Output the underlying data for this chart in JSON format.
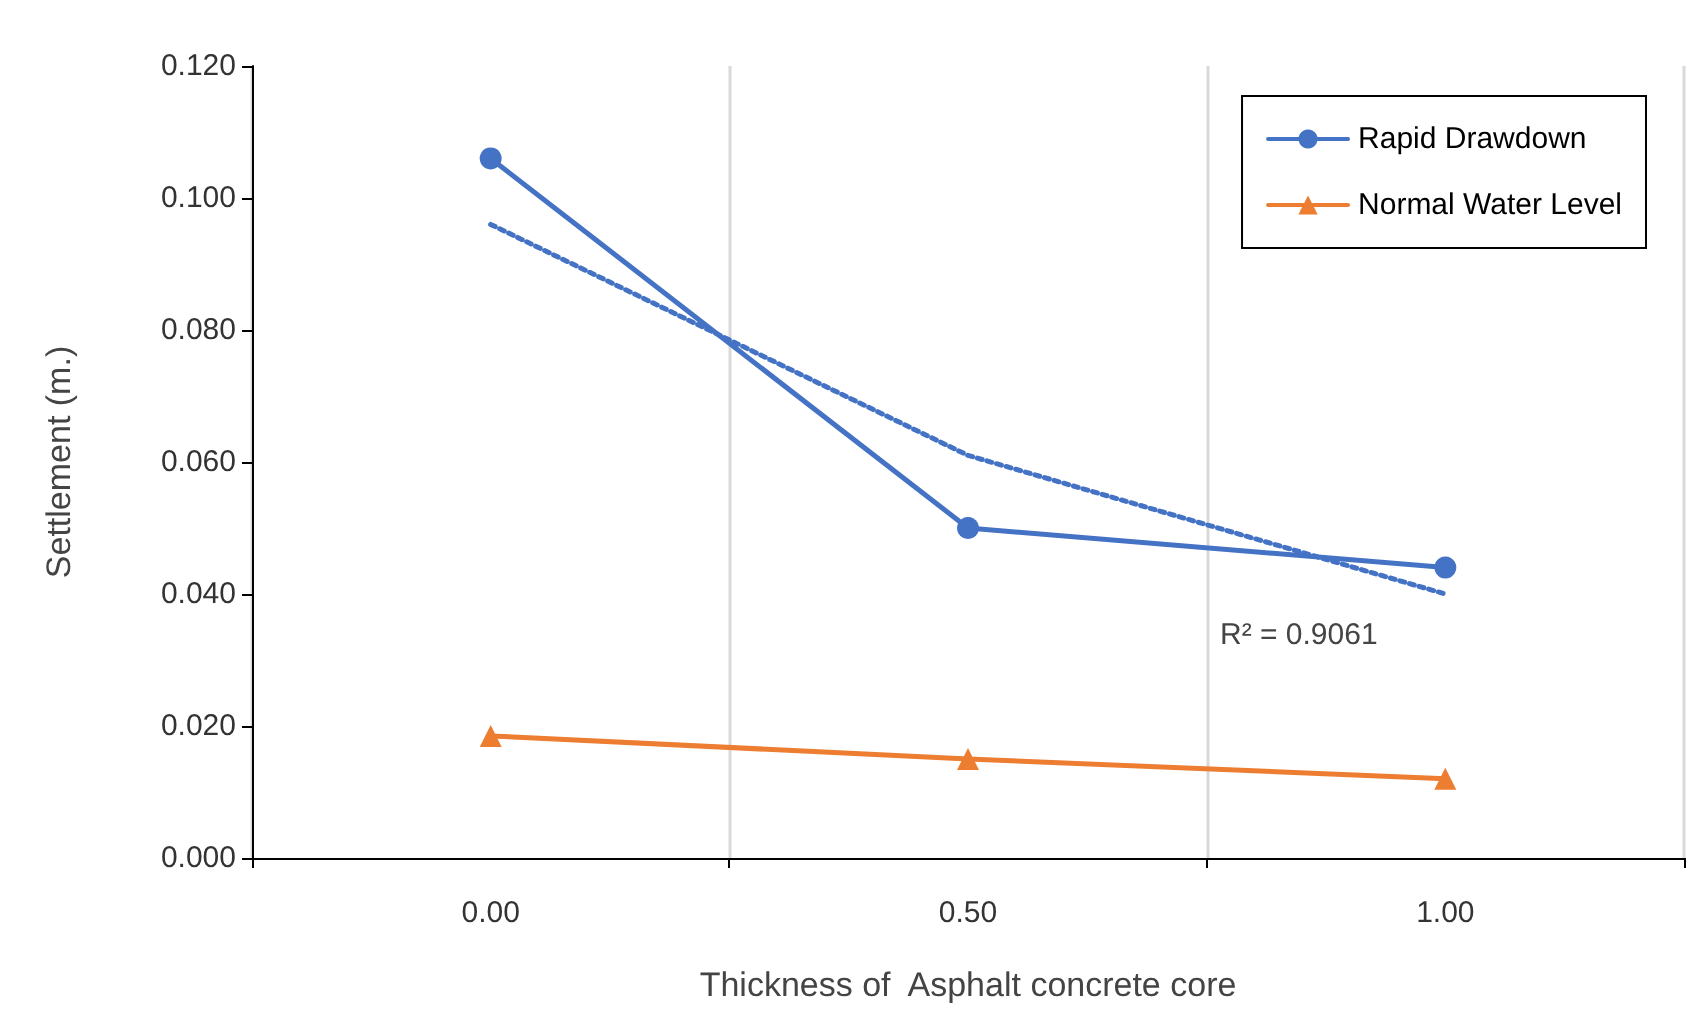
{
  "chart_data": {
    "type": "line",
    "xlabel": "Thickness of  Asphalt concrete core",
    "ylabel": "Settlement (m.)",
    "categories": [
      "0.00",
      "0.50",
      "1.00"
    ],
    "series": [
      {
        "name": "Rapid Drawdown",
        "color": "#4472c4",
        "values": [
          0.106,
          0.05,
          0.044
        ],
        "marker": "circle",
        "line_style": "solid"
      },
      {
        "name": "Normal Water Level",
        "color": "#ed7d31",
        "values": [
          0.0185,
          0.015,
          0.012
        ],
        "marker": "triangle",
        "line_style": "solid"
      },
      {
        "color": "#4472c4",
        "values": [
          0.096,
          0.061,
          0.04
        ],
        "marker": "none",
        "line_style": "dotted"
      }
    ],
    "ylim": [
      0,
      0.12
    ],
    "yticks": [
      {
        "value": 0,
        "label": "0.000"
      },
      {
        "value": 0.02,
        "label": "0.020"
      },
      {
        "value": 0.04,
        "label": "0.040"
      },
      {
        "value": 0.06,
        "label": "0.060"
      },
      {
        "value": 0.08,
        "label": "0.080"
      },
      {
        "value": 0.1,
        "label": "0.100"
      },
      {
        "value": 0.12,
        "label": "0.120"
      }
    ],
    "grid": "x",
    "legend": "top right",
    "annotations": [
      "R² = 0.9061"
    ]
  }
}
